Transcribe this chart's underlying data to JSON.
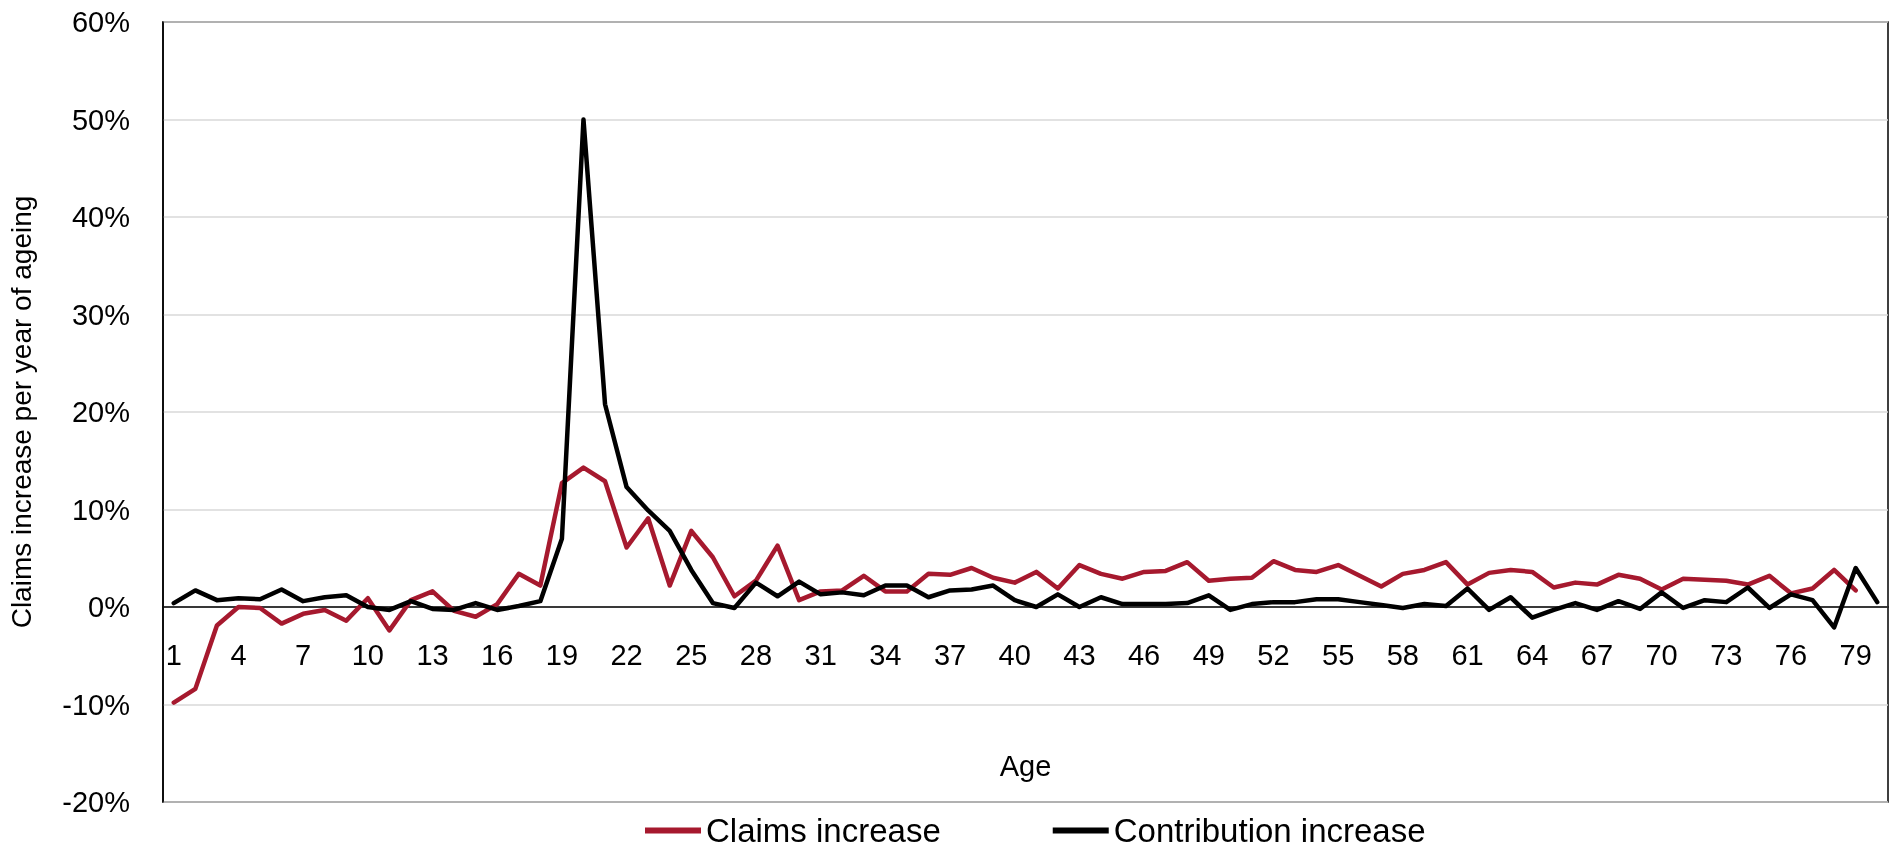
{
  "chart_data": {
    "type": "line",
    "xlabel": "Age",
    "ylabel": "Claims increase per year of ageing",
    "categories": [
      "1",
      null,
      null,
      "4",
      null,
      null,
      "7",
      null,
      null,
      "10",
      null,
      null,
      "13",
      null,
      null,
      "16",
      null,
      null,
      "19",
      null,
      null,
      "22",
      null,
      null,
      "25",
      null,
      null,
      "28",
      null,
      null,
      "31",
      null,
      null,
      "34",
      null,
      null,
      "37",
      null,
      null,
      "40",
      null,
      null,
      "43",
      null,
      null,
      "46",
      null,
      null,
      "49",
      null,
      null,
      "52",
      null,
      null,
      "55",
      null,
      null,
      "58",
      null,
      null,
      "61",
      null,
      null,
      "64",
      null,
      null,
      "67",
      null,
      null,
      "70",
      null,
      null,
      "73",
      null,
      null,
      "76",
      null,
      null,
      "79",
      null
    ],
    "series": [
      {
        "name": "Claims increase",
        "color": "#a6192e",
        "values": [
          -9.8,
          -8.4,
          -1.9,
          0.0,
          -0.1,
          -1.7,
          -0.7,
          -0.3,
          -1.4,
          0.9,
          -2.4,
          0.7,
          1.6,
          -0.4,
          -1.0,
          0.3,
          3.4,
          2.2,
          12.7,
          14.3,
          12.9,
          6.1,
          9.1,
          2.2,
          7.8,
          5.1,
          1.1,
          2.7,
          6.3,
          0.7,
          1.6,
          1.7,
          3.2,
          1.6,
          1.6,
          3.4,
          3.3,
          4.0,
          3.0,
          2.5,
          3.6,
          1.9,
          4.3,
          3.4,
          2.9,
          3.6,
          3.7,
          4.6,
          2.7,
          2.9,
          3.0,
          4.7,
          3.8,
          3.6,
          4.3,
          3.2,
          2.1,
          3.4,
          3.8,
          4.6,
          2.3,
          3.5,
          3.8,
          3.6,
          2.0,
          2.5,
          2.3,
          3.3,
          2.9,
          1.8,
          2.9,
          2.8,
          2.7,
          2.3,
          3.2,
          1.4,
          1.9,
          3.8,
          1.7,
          null
        ]
      },
      {
        "name": "Contribution increase",
        "color": "#000000",
        "values": [
          0.4,
          1.7,
          0.7,
          0.9,
          0.8,
          1.8,
          0.6,
          1.0,
          1.2,
          0.0,
          -0.3,
          0.6,
          -0.2,
          -0.3,
          0.4,
          -0.3,
          0.1,
          0.6,
          7.0,
          50.0,
          20.8,
          12.3,
          9.9,
          7.8,
          3.8,
          0.4,
          -0.1,
          2.5,
          1.1,
          2.6,
          1.3,
          1.5,
          1.2,
          2.2,
          2.2,
          1.0,
          1.7,
          1.8,
          2.2,
          0.7,
          0.0,
          1.3,
          0.0,
          1.0,
          0.3,
          0.3,
          0.3,
          0.4,
          1.2,
          -0.3,
          0.3,
          0.5,
          0.5,
          0.8,
          0.8,
          0.5,
          0.2,
          -0.1,
          0.3,
          0.1,
          1.9,
          -0.3,
          1.0,
          -1.1,
          -0.3,
          0.4,
          -0.3,
          0.6,
          -0.2,
          1.5,
          -0.1,
          0.7,
          0.5,
          2.0,
          -0.1,
          1.3,
          0.7,
          -2.1,
          4.0,
          0.5
        ]
      }
    ],
    "ylim": [
      -20,
      60
    ],
    "yticks": [
      {
        "value": -20,
        "label": "-20%"
      },
      {
        "value": -10,
        "label": "-10%"
      },
      {
        "value": 0,
        "label": "0%"
      },
      {
        "value": 10,
        "label": "10%"
      },
      {
        "value": 20,
        "label": "20%"
      },
      {
        "value": 30,
        "label": "30%"
      },
      {
        "value": 40,
        "label": "40%"
      },
      {
        "value": 50,
        "label": "50%"
      },
      {
        "value": 60,
        "label": "60%"
      }
    ],
    "grid": "y",
    "legend": "bottom",
    "marker": "none",
    "line_style": "solid"
  }
}
